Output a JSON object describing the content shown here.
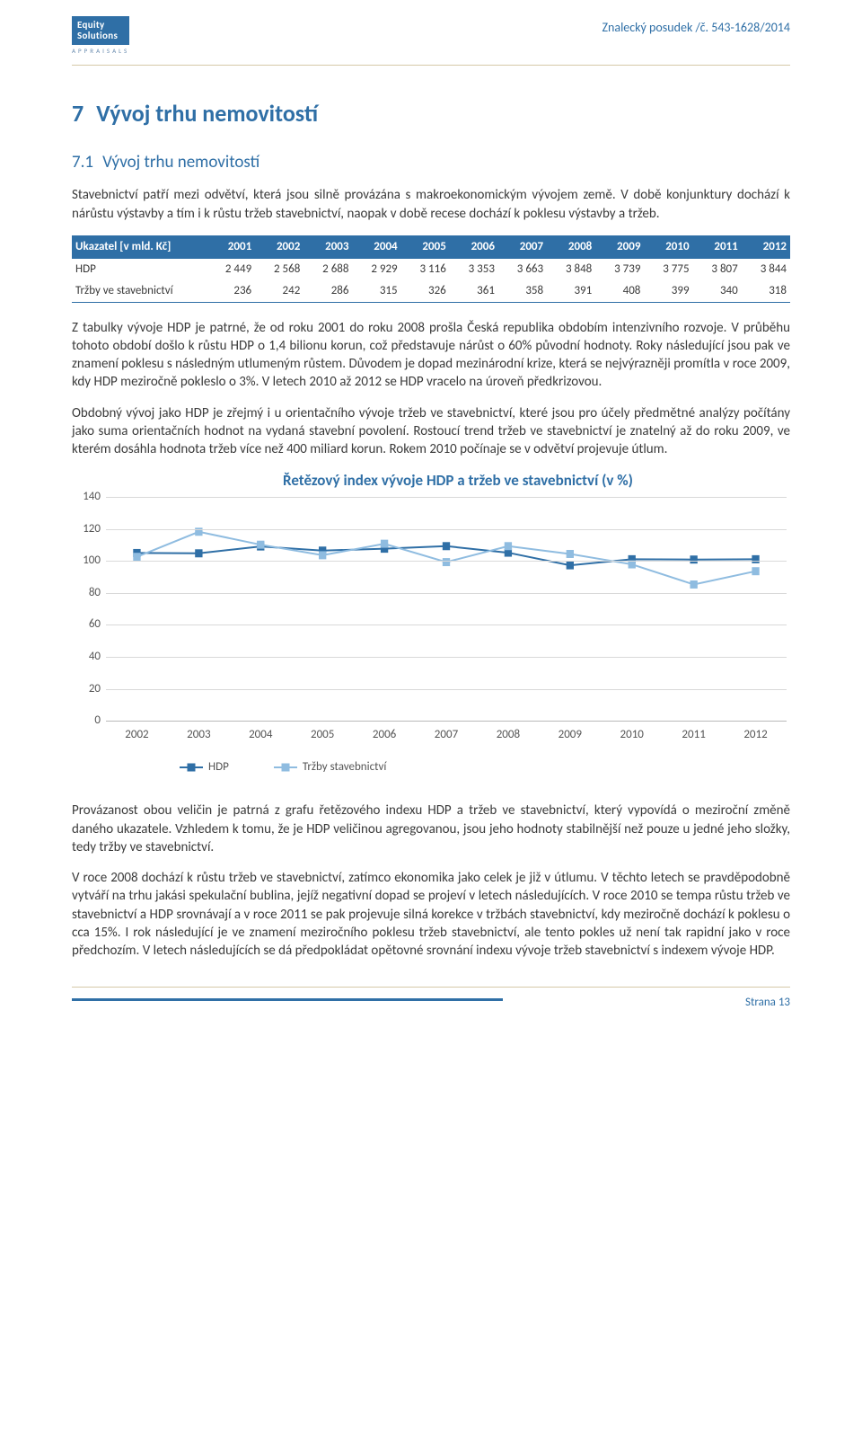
{
  "header": {
    "logo_line1": "Equity",
    "logo_line2": "Solutions",
    "logo_sub": "APPRAISALS",
    "doc_ref": "Znalecký posudek /č. 543-1628/2014"
  },
  "section": {
    "num": "7",
    "title": "Vývoj trhu nemovitostí"
  },
  "subsection": {
    "num": "7.1",
    "title": "Vývoj trhu nemovitostí"
  },
  "para1": "Stavebnictví patří mezi odvětví, která jsou silně provázána s makroekonomickým vývojem země. V době konjunktury dochází k nárůstu výstavby a tím i k růstu tržeb stavebnictví, naopak v době recese dochází k poklesu výstavby a tržeb.",
  "table": {
    "header_label": "Ukazatel [v mld. Kč]",
    "years": [
      "2001",
      "2002",
      "2003",
      "2004",
      "2005",
      "2006",
      "2007",
      "2008",
      "2009",
      "2010",
      "2011",
      "2012"
    ],
    "row1_label": "HDP",
    "row1_vals": [
      "2 449",
      "2 568",
      "2 688",
      "2 929",
      "3 116",
      "3 353",
      "3 663",
      "3 848",
      "3 739",
      "3 775",
      "3 807",
      "3 844"
    ],
    "row2_label": "Tržby ve stavebnictví",
    "row2_vals": [
      "236",
      "242",
      "286",
      "315",
      "326",
      "361",
      "358",
      "391",
      "408",
      "399",
      "340",
      "318"
    ]
  },
  "para2": "Z tabulky vývoje HDP je patrné, že od roku 2001 do roku 2008 prošla Česká republika obdobím intenzivního rozvoje. V průběhu tohoto období došlo k růstu HDP o 1,4 bilionu korun, což představuje nárůst o 60% původní hodnoty. Roky následující jsou pak ve znamení poklesu s následným utlumeným růstem. Důvodem je dopad mezinárodní krize, která se nejvýrazněji promítla v roce 2009, kdy HDP meziročně pokleslo o 3%. V letech 2010 až 2012 se HDP vracelo na úroveň předkrizovou.",
  "para3": "Obdobný vývoj jako HDP je zřejmý i u orientačního vývoje tržeb ve stavebnictví, které jsou pro účely předmětné analýzy počítány jako suma orientačních hodnot na vydaná stavební povolení. Rostoucí trend tržeb ve stavebnictví je znatelný až do roku 2009, ve kterém dosáhla hodnota tržeb více než 400 miliard korun. Rokem 2010 počínaje se v odvětví projevuje útlum.",
  "chart": {
    "title": "Řetězový index vývoje HDP a tržeb ve stavebnictví (v %)",
    "y_ticks": [
      0,
      20,
      40,
      60,
      80,
      100,
      120,
      140
    ],
    "y_min": 0,
    "y_max": 140,
    "x_categories": [
      "2002",
      "2003",
      "2004",
      "2005",
      "2006",
      "2007",
      "2008",
      "2009",
      "2010",
      "2011",
      "2012"
    ],
    "series": [
      {
        "name": "HDP",
        "color": "#2f6fa6",
        "marker": "rect",
        "values": [
          104.9,
          104.7,
          109.0,
          106.4,
          107.6,
          109.2,
          105.1,
          97.2,
          101.0,
          100.8,
          101.0
        ]
      },
      {
        "name": "Tržby stavebnictví",
        "color": "#8fbce0",
        "marker": "rect",
        "values": [
          102.5,
          118.2,
          110.1,
          103.5,
          110.7,
          99.2,
          109.2,
          104.3,
          97.8,
          85.2,
          93.5
        ]
      }
    ],
    "grid_color": "#d9d9d9",
    "background": "#ffffff",
    "line_width": 2,
    "marker_size": 9
  },
  "para4": "Provázanost obou veličin je patrná z grafu řetězového indexu HDP a tržeb ve stavebnictví, který vypovídá o meziroční změně daného ukazatele. Vzhledem k tomu, že je HDP veličinou agregovanou, jsou jeho hodnoty stabilnější než pouze u jedné jeho složky, tedy tržby ve stavebnictví.",
  "para5": "V roce 2008 dochází k růstu tržeb ve stavebnictví, zatímco ekonomika jako celek je již v útlumu. V těchto letech se pravděpodobně vytváří na trhu jakási spekulační bublina, jejíž negativní dopad se projeví v letech následujících. V roce 2010 se tempa růstu tržeb ve stavebnictví a HDP srovnávají a v roce 2011 se pak projevuje silná korekce v tržbách stavebnictví, kdy meziročně dochází k poklesu o cca 15%. I rok následující je ve znamení meziročního poklesu tržeb stavebnictví, ale tento pokles už není tak rapidní jako v roce předchozím. V letech následujících se dá předpokládat opětovné srovnání indexu vývoje tržeb stavebnictví s indexem vývoje HDP.",
  "footer": {
    "page_label": "Strana 13"
  }
}
